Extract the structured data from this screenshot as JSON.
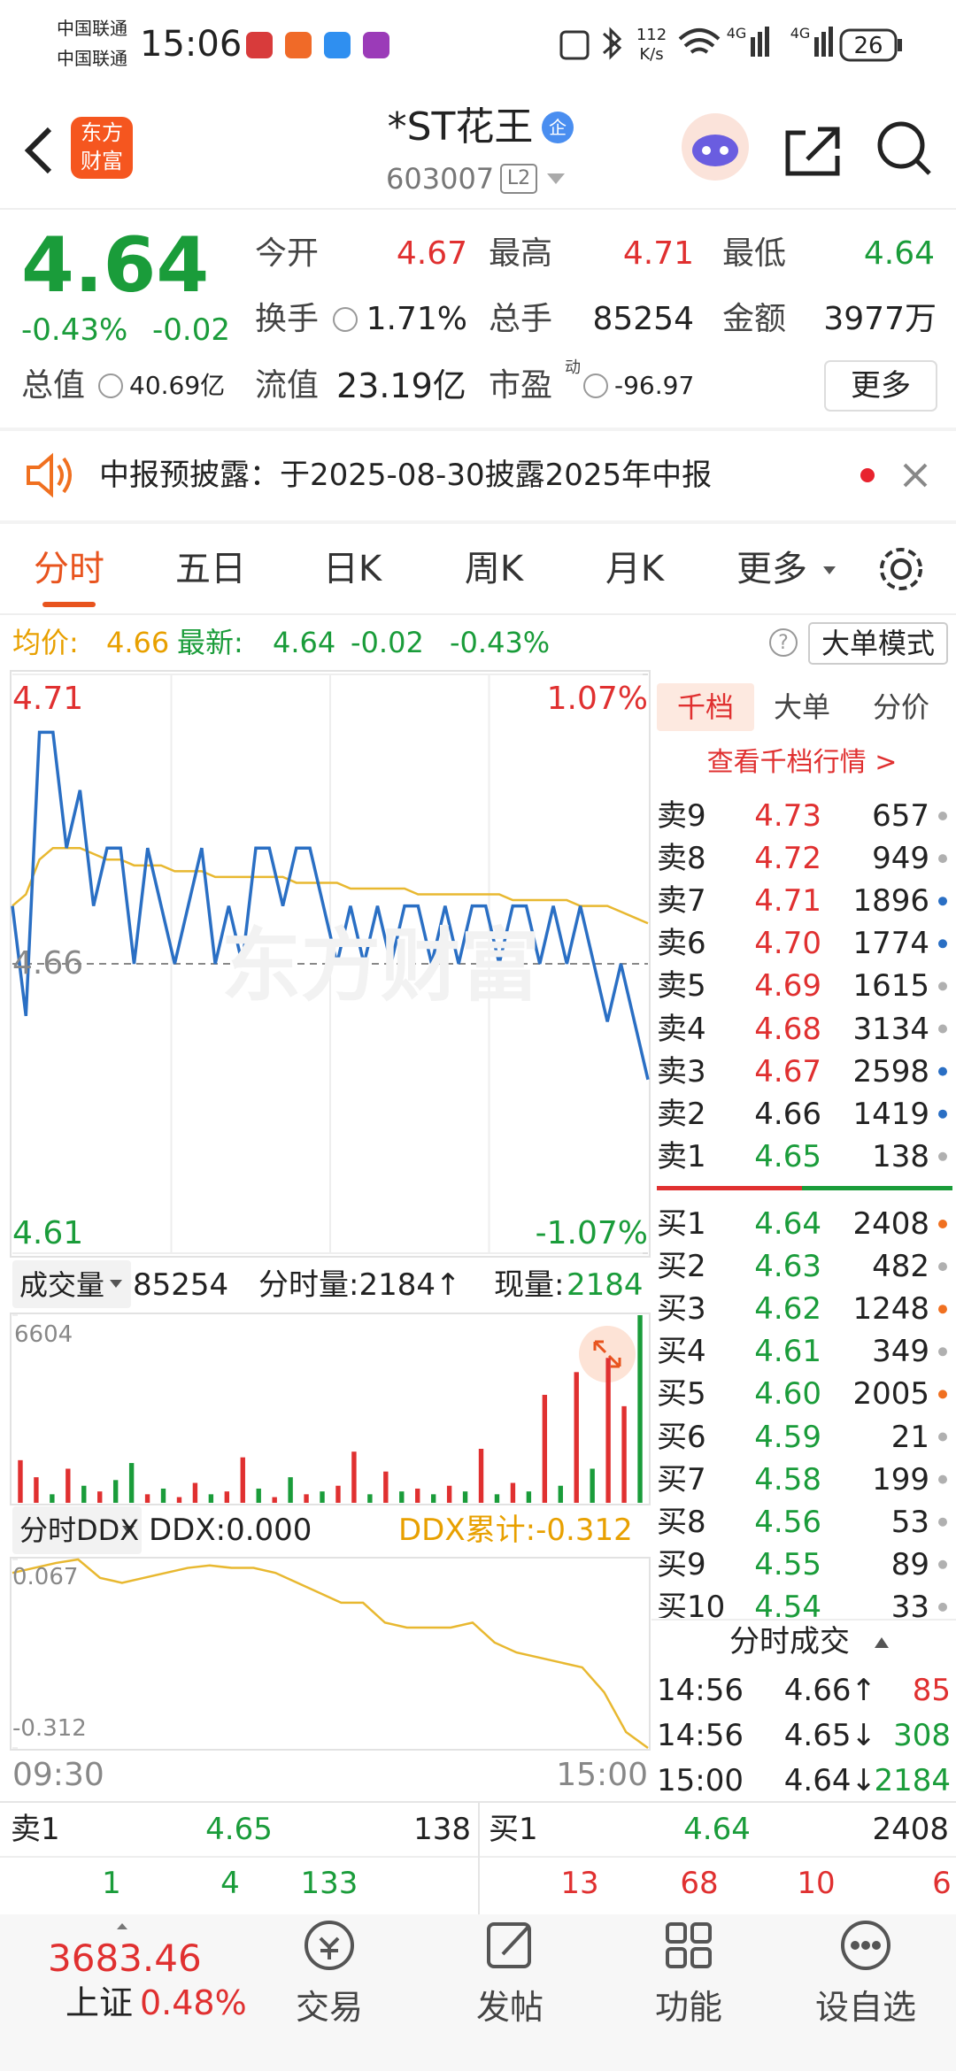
{
  "status_bar": {
    "carrier_1": "中国联通",
    "carrier_2": "中国联通",
    "time": "15:06",
    "speed": "112",
    "speed_unit": "K/s",
    "signal_1": "4G",
    "signal_2": "4G",
    "battery": "26"
  },
  "header": {
    "logo_top": "东方",
    "logo_bottom": "财富",
    "title": "*ST花王",
    "badge": "企",
    "code": "603007",
    "level": "L2"
  },
  "quote": {
    "price": "4.64",
    "change_pct": "-0.43%",
    "change": "-0.02",
    "row_1": [
      {
        "label": "今开",
        "value": "4.67"
      },
      {
        "label": "最高",
        "value": "4.71"
      },
      {
        "label": "最低",
        "value": "4.64"
      }
    ],
    "row_2": [
      {
        "label": "换手",
        "value": "1.71%"
      },
      {
        "label": "总手",
        "value": "85254"
      },
      {
        "label": "金额",
        "value": "3977万"
      }
    ],
    "row_3": [
      {
        "label": "总值",
        "value": "40.69亿"
      },
      {
        "label": "流值",
        "value": "23.19亿"
      },
      {
        "label": "市盈",
        "superscript": "动",
        "value": "-96.97"
      }
    ],
    "more": "更多"
  },
  "notice": {
    "text": "中报预披露：于2025-08-30披露2025年中报"
  },
  "tabs": [
    "分时",
    "五日",
    "日K",
    "周K",
    "月K",
    "更多"
  ],
  "info_bar": {
    "avg_label": "均价:",
    "avg": "4.66",
    "latest_label": "最新:",
    "latest": "4.64",
    "change": "-0.02",
    "change_pct": "-0.43%",
    "help": "?",
    "mode": "大单模式"
  },
  "intraday": {
    "type": "line",
    "watermark": "东方财富",
    "ylim": [
      4.61,
      4.71
    ],
    "yticks": [
      4.71,
      4.66,
      4.61
    ],
    "y2lim": [
      -1.07,
      1.07
    ],
    "y2ticks": [
      {
        "value": 1.07,
        "label": "1.07%"
      },
      {
        "value": -1.07,
        "label": "-1.07%"
      }
    ],
    "series": [
      {
        "color": "#2a6fc4",
        "values": [
          4.67,
          4.651,
          4.7,
          4.7,
          4.68,
          4.69,
          4.67,
          4.68,
          4.68,
          4.66,
          4.68,
          4.67,
          4.66,
          4.67,
          4.68,
          4.66,
          4.67,
          4.66,
          4.68,
          4.68,
          4.67,
          4.68,
          4.68,
          4.67,
          4.66,
          4.67,
          4.66,
          4.67,
          4.66,
          4.67,
          4.67,
          4.66,
          4.67,
          4.66,
          4.67,
          4.67,
          4.66,
          4.67,
          4.67,
          4.66,
          4.67,
          4.66,
          4.67,
          4.66,
          4.65,
          4.66,
          4.65,
          4.64
        ]
      },
      {
        "color": "#e8b830",
        "values": [
          4.67,
          4.672,
          4.678,
          4.68,
          4.68,
          4.68,
          4.679,
          4.678,
          4.678,
          4.677,
          4.677,
          4.677,
          4.676,
          4.676,
          4.676,
          4.675,
          4.675,
          4.675,
          4.675,
          4.675,
          4.675,
          4.674,
          4.674,
          4.674,
          4.674,
          4.673,
          4.673,
          4.673,
          4.673,
          4.673,
          4.672,
          4.672,
          4.672,
          4.672,
          4.672,
          4.672,
          4.672,
          4.671,
          4.671,
          4.671,
          4.671,
          4.671,
          4.67,
          4.67,
          4.67,
          4.669,
          4.668,
          4.667
        ]
      }
    ]
  },
  "volume_bar": {
    "selector": "成交量",
    "total": "85254",
    "period_volume": "分时量:2184↑",
    "current_label": "现量:",
    "current": "2184"
  },
  "volume": {
    "type": "bar",
    "ylim": [
      0,
      6604
    ],
    "yticks": [
      6604
    ],
    "values": [
      1500,
      900,
      300,
      1200,
      600,
      400,
      800,
      1400,
      300,
      500,
      200,
      700,
      300,
      400,
      1600,
      500,
      200,
      900,
      300,
      400,
      600,
      1800,
      300,
      1100,
      400,
      500,
      300,
      600,
      400,
      1900,
      300,
      700,
      400,
      3800,
      600,
      4600,
      1200,
      5100,
      3400,
      6604
    ],
    "colors": [
      "#e03030",
      "#e03030",
      "#1a9c3a",
      "#e03030",
      "#1a9c3a",
      "#e03030",
      "#1a9c3a",
      "#1a9c3a",
      "#e03030",
      "#1a9c3a",
      "#e03030",
      "#e03030",
      "#1a9c3a",
      "#e03030",
      "#e03030",
      "#1a9c3a",
      "#e03030",
      "#1a9c3a",
      "#e03030",
      "#1a9c3a",
      "#e03030",
      "#e03030",
      "#1a9c3a",
      "#e03030",
      "#1a9c3a",
      "#e03030",
      "#1a9c3a",
      "#e03030",
      "#1a9c3a",
      "#e03030",
      "#1a9c3a",
      "#e03030",
      "#1a9c3a",
      "#e03030",
      "#1a9c3a",
      "#e03030",
      "#1a9c3a",
      "#e03030",
      "#e03030",
      "#1a9c3a"
    ]
  },
  "ddx_bar": {
    "selector": "分时DDX",
    "ddx": "DDX:0.000",
    "cumulative": "DDX累计:-0.312"
  },
  "ddx": {
    "type": "line",
    "color": "#e8b830",
    "ylim": [
      -0.312,
      0.067
    ],
    "yticks": [
      0.067,
      -0.312
    ],
    "values": [
      0.04,
      0.05,
      0.06,
      0.067,
      0.03,
      0.02,
      0.03,
      0.04,
      0.05,
      0.055,
      0.05,
      0.05,
      0.04,
      0.02,
      0.0,
      -0.02,
      -0.02,
      -0.06,
      -0.07,
      -0.07,
      -0.07,
      -0.06,
      -0.1,
      -0.12,
      -0.13,
      -0.14,
      -0.15,
      -0.2,
      -0.28,
      -0.312
    ]
  },
  "time_axis": [
    "09:30",
    "15:00"
  ],
  "order_book": {
    "tabs": [
      "千档",
      "大单",
      "分价"
    ],
    "link": "查看千档行情 >",
    "sell": [
      {
        "label": "卖9",
        "price": "4.73",
        "volume": "657",
        "dot": "#b0b0b0"
      },
      {
        "label": "卖8",
        "price": "4.72",
        "volume": "949",
        "dot": "#b0b0b0"
      },
      {
        "label": "卖7",
        "price": "4.71",
        "volume": "1896",
        "dot": "#2a6fc4"
      },
      {
        "label": "卖6",
        "price": "4.70",
        "volume": "1774",
        "dot": "#2a6fc4"
      },
      {
        "label": "卖5",
        "price": "4.69",
        "volume": "1615",
        "dot": "#b0b0b0"
      },
      {
        "label": "卖4",
        "price": "4.68",
        "volume": "3134",
        "dot": "#b0b0b0"
      },
      {
        "label": "卖3",
        "price": "4.67",
        "volume": "2598",
        "dot": "#2a6fc4"
      },
      {
        "label": "卖2",
        "price": "4.66",
        "volume": "1419",
        "dot": "#2a6fc4"
      },
      {
        "label": "卖1",
        "price": "4.65",
        "volume": "138",
        "dot": "#b0b0b0"
      }
    ],
    "buy": [
      {
        "label": "买1",
        "price": "4.64",
        "volume": "2408",
        "dot": "#f07020"
      },
      {
        "label": "买2",
        "price": "4.63",
        "volume": "482",
        "dot": "#b0b0b0"
      },
      {
        "label": "买3",
        "price": "4.62",
        "volume": "1248",
        "dot": "#f07020"
      },
      {
        "label": "买4",
        "price": "4.61",
        "volume": "349",
        "dot": "#b0b0b0"
      },
      {
        "label": "买5",
        "price": "4.60",
        "volume": "2005",
        "dot": "#f07020"
      },
      {
        "label": "买6",
        "price": "4.59",
        "volume": "21",
        "dot": "#b0b0b0"
      },
      {
        "label": "买7",
        "price": "4.58",
        "volume": "199",
        "dot": "#b0b0b0"
      },
      {
        "label": "买8",
        "price": "4.56",
        "volume": "53",
        "dot": "#b0b0b0"
      },
      {
        "label": "买9",
        "price": "4.55",
        "volume": "89",
        "dot": "#b0b0b0"
      },
      {
        "label": "买10",
        "price": "4.54",
        "volume": "33",
        "dot": "#b0b0b0"
      }
    ]
  },
  "trades": {
    "title": "分时成交",
    "rows": [
      {
        "time": "14:56",
        "price": "4.66↑",
        "volume": "85",
        "color": "#e03030"
      },
      {
        "time": "14:56",
        "price": "4.65↓",
        "volume": "308",
        "color": "#1a9c3a"
      },
      {
        "time": "15:00",
        "price": "4.64↓",
        "volume": "2184",
        "color": "#1a9c3a"
      }
    ]
  },
  "summary": {
    "sell_label": "卖1",
    "sell_price": "4.65",
    "sell_volume": "138",
    "buy_label": "买1",
    "buy_price": "4.64",
    "buy_volume": "2408",
    "sell_counts": [
      "1",
      "4",
      "133"
    ],
    "buy_counts": [
      "13",
      "68",
      "10",
      "6"
    ]
  },
  "nav": {
    "index_value": "3683.46",
    "index_name": "上证",
    "index_change": "0.48%",
    "items": [
      "交易",
      "发帖",
      "功能",
      "设自选"
    ]
  }
}
